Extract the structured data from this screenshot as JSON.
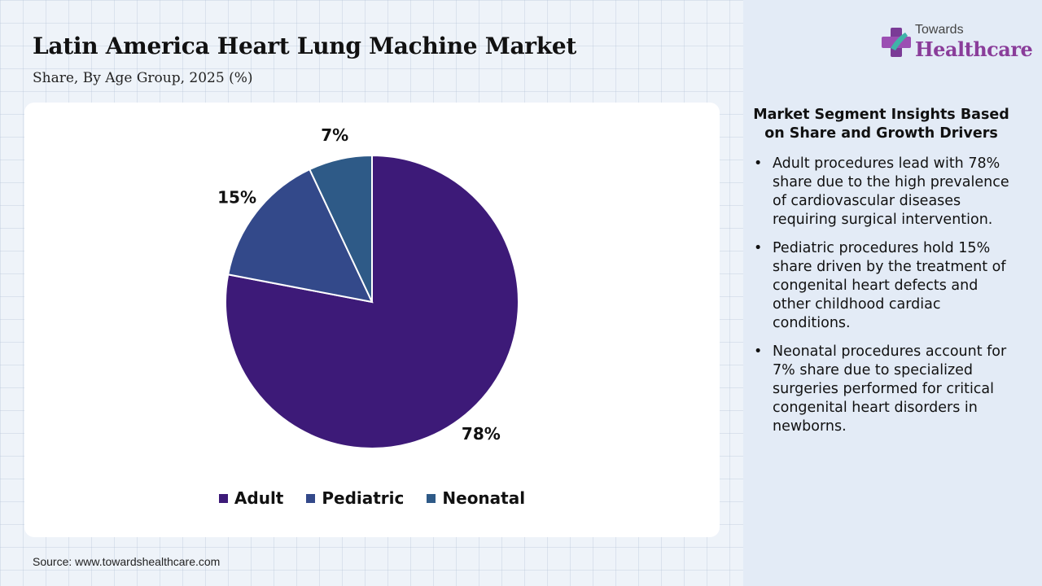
{
  "title": "Latin America Heart Lung Machine Market",
  "subtitle": "Share, By Age Group, 2025 (%)",
  "source": "Source: www.towardshealthcare.com",
  "logo": {
    "small": "Towards",
    "big": "Healthcare",
    "icon": "plus-cross-icon"
  },
  "panel": {
    "heading": "Market Segment Insights Based on Share and Growth Drivers",
    "bullets": [
      "Adult procedures lead with 78% share due to the high prevalence of cardiovascular diseases requiring surgical intervention.",
      "Pediatric procedures hold 15% share driven by the treatment of congenital heart defects and other childhood cardiac conditions.",
      "Neonatal procedures account for 7% share due to specialized surgeries performed for critical congenital heart disorders in newborns."
    ]
  },
  "chart_data": {
    "type": "pie",
    "categories": [
      "Adult",
      "Pediatric",
      "Neonatal"
    ],
    "values": [
      78,
      15,
      7
    ],
    "labels": [
      "78%",
      "15%",
      "7%"
    ],
    "colors": [
      "#3d1a78",
      "#33498a",
      "#2e5a87"
    ],
    "legend_position": "bottom"
  }
}
